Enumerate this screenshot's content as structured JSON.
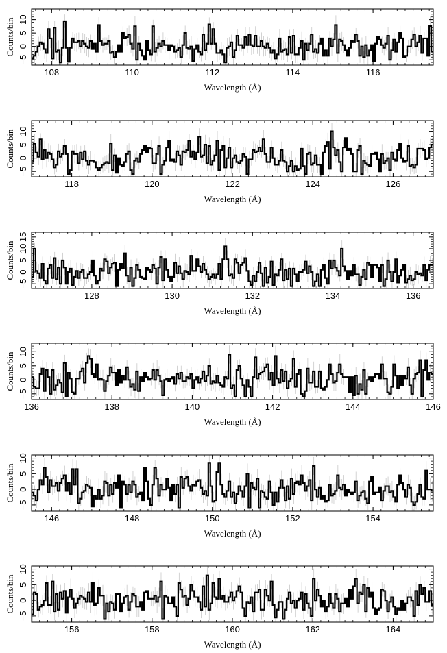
{
  "figure": {
    "background": "#ffffff",
    "line_color": "#000000",
    "errorbar_color": "#c8c8c8"
  },
  "chart_data": [
    {
      "type": "line",
      "panel": 1,
      "xlabel": "Wavelength (Å)",
      "ylabel": "Counts/bin",
      "xlim": [
        107.5,
        117.5
      ],
      "ylim": [
        -7,
        14
      ],
      "xticks": [
        108,
        110,
        112,
        114,
        116
      ],
      "xtick_labels": [
        "108",
        "110",
        "112",
        "114",
        "116"
      ],
      "yticks": [
        -5,
        0,
        5,
        10
      ],
      "ytick_labels": [
        "−5",
        "0",
        "5",
        "10"
      ],
      "bin_width": 0.05,
      "seed": 1,
      "noise": 3.2,
      "highlights": [
        [
          108.35,
          9.4
        ],
        [
          108.4,
          -5.8
        ],
        [
          109.15,
          8.0
        ],
        [
          111.9,
          8.2
        ],
        [
          117.4,
          7.6
        ]
      ],
      "errorbar_halfwidth": 3.0
    },
    {
      "type": "line",
      "panel": 2,
      "xlabel": "Wavelength (Å)",
      "ylabel": "Counts/bin",
      "xlim": [
        117.0,
        127.0
      ],
      "ylim": [
        -7,
        14
      ],
      "xticks": [
        118,
        120,
        122,
        124,
        126
      ],
      "xtick_labels": [
        "118",
        "120",
        "122",
        "124",
        "126"
      ],
      "yticks": [
        -5,
        0,
        5,
        10
      ],
      "ytick_labels": [
        "−5",
        "0",
        "5",
        "10"
      ],
      "bin_width": 0.05,
      "seed": 2,
      "noise": 3.0,
      "highlights": [
        [
          117.2,
          7.0
        ],
        [
          120.2,
          -6.0
        ],
        [
          121.15,
          8.0
        ],
        [
          122.8,
          7.0
        ],
        [
          124.45,
          10.0
        ]
      ],
      "errorbar_halfwidth": 3.0
    },
    {
      "type": "line",
      "panel": 3,
      "xlabel": "Wavelength (Å)",
      "ylabel": "Counts/bin",
      "xlim": [
        126.5,
        136.5
      ],
      "ylim": [
        -7,
        17
      ],
      "xticks": [
        128,
        130,
        132,
        134,
        136
      ],
      "xtick_labels": [
        "128",
        "130",
        "132",
        "134",
        "136"
      ],
      "yticks": [
        -5,
        0,
        5,
        10,
        15
      ],
      "ytick_labels": [
        "−5",
        "0",
        "5",
        "10",
        "15"
      ],
      "bin_width": 0.05,
      "seed": 3,
      "noise": 3.3,
      "highlights": [
        [
          128.8,
          8.0
        ],
        [
          129.0,
          -6.0
        ],
        [
          131.3,
          11.0
        ],
        [
          132.5,
          -5.5
        ],
        [
          135.6,
          5.5
        ]
      ],
      "errorbar_halfwidth": 3.2
    },
    {
      "type": "line",
      "panel": 4,
      "xlabel": "Wavelength (Å)",
      "ylabel": "Counts/bin",
      "xlim": [
        136.0,
        146.0
      ],
      "ylim": [
        -7,
        13
      ],
      "xticks": [
        136,
        138,
        140,
        142,
        144,
        146
      ],
      "xtick_labels": [
        "136",
        "138",
        "140",
        "142",
        "144",
        "146"
      ],
      "yticks": [
        -5,
        0,
        5,
        10
      ],
      "ytick_labels": [
        "−5",
        "0",
        "5",
        "10"
      ],
      "bin_width": 0.05,
      "seed": 4,
      "noise": 3.0,
      "highlights": [
        [
          141.55,
          8.0
        ],
        [
          141.35,
          -6.0
        ],
        [
          142.05,
          8.5
        ],
        [
          145.85,
          7.0
        ],
        [
          140.4,
          5.0
        ]
      ],
      "errorbar_halfwidth": 3.0
    },
    {
      "type": "line",
      "panel": 5,
      "xlabel": "Wavelength (Å)",
      "ylabel": "Counts/bin",
      "xlim": [
        145.5,
        155.5
      ],
      "ylim": [
        -7,
        11
      ],
      "xticks": [
        146,
        148,
        150,
        152,
        154
      ],
      "xtick_labels": [
        "146",
        "148",
        "150",
        "152",
        "154"
      ],
      "yticks": [
        -5,
        0,
        5,
        10
      ],
      "ytick_labels": [
        "−5",
        "0",
        "5",
        "10"
      ],
      "bin_width": 0.05,
      "seed": 5,
      "noise": 2.9,
      "highlights": [
        [
          145.85,
          7.0
        ],
        [
          147.0,
          -5.5
        ],
        [
          148.3,
          7.0
        ],
        [
          150.9,
          -6.0
        ],
        [
          155.3,
          6.0
        ]
      ],
      "errorbar_halfwidth": 2.8
    },
    {
      "type": "line",
      "panel": 6,
      "xlabel": "Wavelength (Å)",
      "ylabel": "Counts/bin",
      "xlim": [
        155.0,
        165.0
      ],
      "ylim": [
        -7,
        11
      ],
      "xticks": [
        156,
        158,
        160,
        162,
        164
      ],
      "xtick_labels": [
        "156",
        "158",
        "160",
        "162",
        "164"
      ],
      "yticks": [
        -5,
        0,
        5,
        10
      ],
      "ytick_labels": [
        "−5",
        "0",
        "5",
        "10"
      ],
      "bin_width": 0.05,
      "seed": 6,
      "noise": 2.9,
      "highlights": [
        [
          155.5,
          6.0
        ],
        [
          156.85,
          -6.0
        ],
        [
          159.7,
          7.0
        ],
        [
          163.1,
          7.0
        ],
        [
          164.5,
          -5.0
        ]
      ],
      "errorbar_halfwidth": 2.8
    }
  ]
}
